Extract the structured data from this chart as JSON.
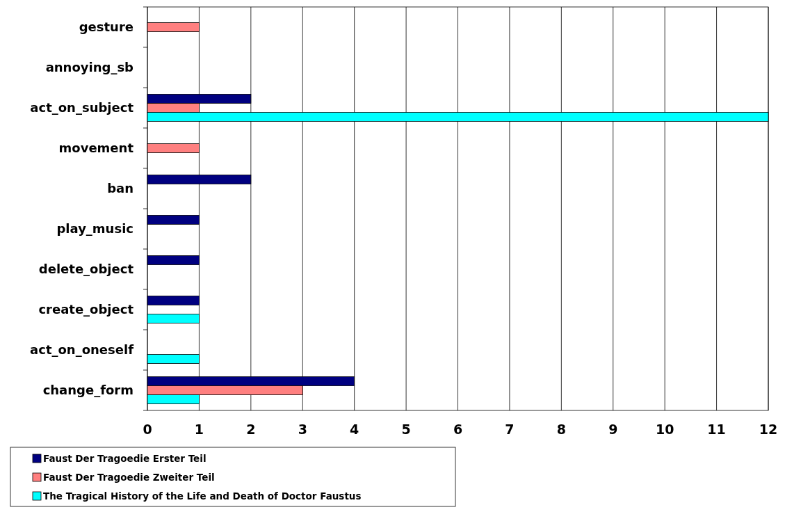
{
  "chart_data": {
    "type": "bar",
    "orientation": "horizontal",
    "categories": [
      "gesture",
      "annoying_sb",
      "act_on_subject",
      "movement",
      "ban",
      "play_music",
      "delete_object",
      "create_object",
      "act_on_oneself",
      "change_form"
    ],
    "series": [
      {
        "name": "Faust Der Tragoedie Erster Teil",
        "color": "#000080",
        "values": [
          null,
          null,
          2,
          null,
          2,
          1,
          1,
          1,
          null,
          4
        ]
      },
      {
        "name": "Faust Der Tragoedie Zweiter Teil",
        "color": "#ff8080",
        "values": [
          1,
          null,
          1,
          1,
          null,
          null,
          null,
          null,
          null,
          3
        ]
      },
      {
        "name": "The Tragical History of the Life and Death of Doctor Faustus",
        "color": "#00ffff",
        "values": [
          null,
          null,
          12,
          null,
          null,
          null,
          null,
          1,
          1,
          1
        ]
      }
    ],
    "xlim": [
      0,
      12
    ],
    "xticks": [
      0,
      1,
      2,
      3,
      4,
      5,
      6,
      7,
      8,
      9,
      10,
      11,
      12
    ],
    "grid": "x",
    "legend": "bottom left"
  }
}
